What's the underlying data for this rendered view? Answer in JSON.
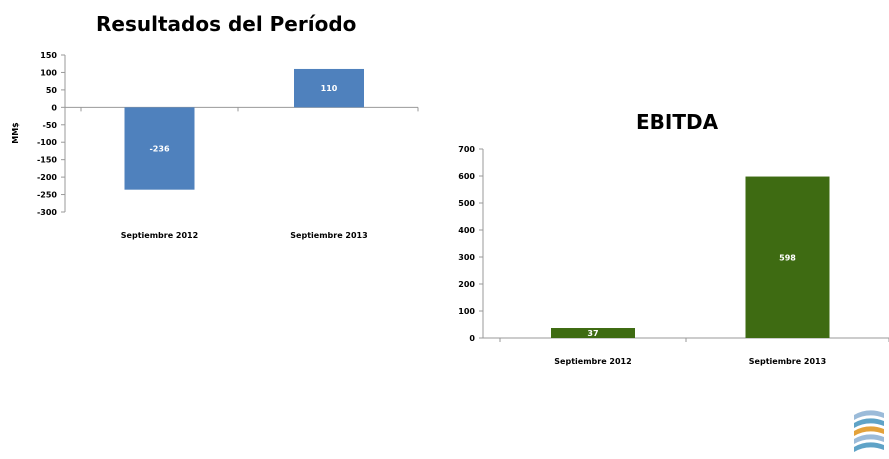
{
  "chart_data": [
    {
      "type": "bar",
      "title": "Resultados del Período",
      "ylabel": "MM$",
      "xlabel": "",
      "categories": [
        "Septiembre 2012",
        "Septiembre 2013"
      ],
      "values": [
        -236,
        110
      ],
      "ylim": [
        -300,
        150
      ],
      "yticks": [
        150,
        100,
        50,
        0,
        -50,
        -100,
        -150,
        -200,
        -250,
        -300
      ],
      "data_labels": [
        "-236",
        "110"
      ],
      "grid": false,
      "legend": "none",
      "color": "#4F81BD"
    },
    {
      "type": "bar",
      "title": "EBITDA",
      "ylabel": "",
      "xlabel": "",
      "categories": [
        "Septiembre 2012",
        "Septiembre 2013"
      ],
      "values": [
        37,
        598
      ],
      "ylim": [
        0,
        700
      ],
      "yticks": [
        700,
        600,
        500,
        400,
        300,
        200,
        100,
        0
      ],
      "data_labels": [
        "37",
        "598"
      ],
      "grid": false,
      "legend": "none",
      "color": "#3E6B12"
    }
  ],
  "logo": {
    "icon": "company-logo-icon",
    "colors": [
      "#9BBBD9",
      "#5FA3C7",
      "#E3A23B"
    ]
  }
}
